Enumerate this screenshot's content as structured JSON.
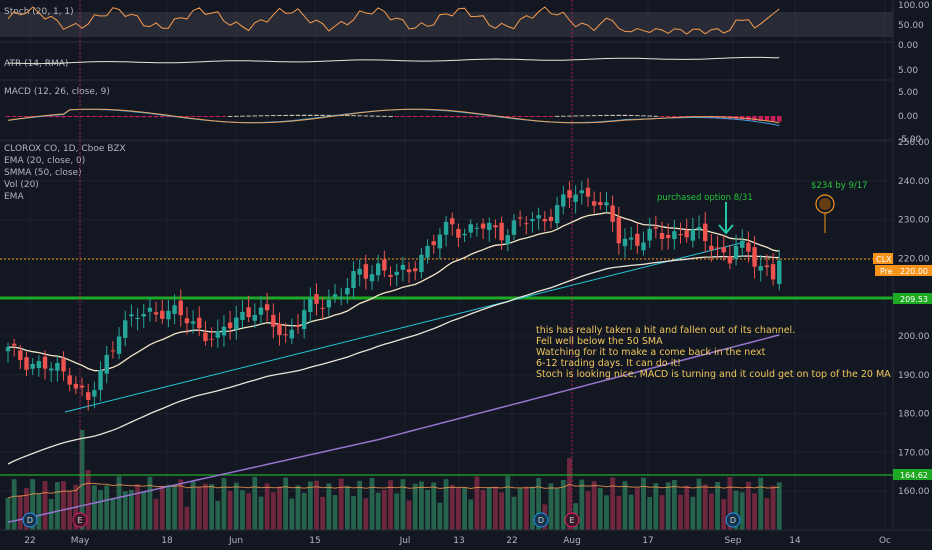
{
  "chart_data": {
    "type": "candlestick",
    "symbol": "CLX",
    "title": "CLOROX CO, 1D, Cboe BZX",
    "indicator_legend": [
      "EMA (20, close, 0)",
      "SMMA (50, close)",
      "Vol (20)",
      "EMA"
    ],
    "panes": {
      "stoch": {
        "label": "Stoch (20, 1, 1)",
        "ticks": [
          "100.00",
          "50.00",
          "0.00"
        ],
        "ylim": [
          0,
          100
        ]
      },
      "atr": {
        "label": "ATR (14, RMA)",
        "ticks": [
          "5.00"
        ]
      },
      "macd": {
        "label": "MACD (12, 26, close, 9)",
        "ticks": [
          "5.00",
          "0.00",
          "-5.00"
        ]
      }
    },
    "price_axis": {
      "ticks": [
        "250.00",
        "240.00",
        "230.00",
        "220.00",
        "210.00",
        "200.00",
        "190.00",
        "180.00",
        "170.00",
        "160.00"
      ],
      "ylim": [
        150,
        250
      ]
    },
    "x_ticks": [
      "22",
      "May",
      "18",
      "Jun",
      "15",
      "Jul",
      "13",
      "22",
      "Aug",
      "17",
      "Sep",
      "14",
      "Oc"
    ],
    "price_labels": {
      "current": {
        "symbol": "CLX",
        "prefix": "Pre",
        "value": "220.00",
        "color": "#f7931a"
      },
      "support": {
        "value": "209.53",
        "color": "#1fa824"
      },
      "lower": {
        "value": "164.62",
        "color": "#1fa824"
      }
    },
    "annotations": {
      "target": "$234 by 9/17",
      "purchase": "purchased option 8/31",
      "note": [
        "this has really taken a hit and fallen out of its channel.",
        "Fell well below the 50 SMA",
        "Watching for it to make a come back in the next",
        "6-12 trading days. It can do it!",
        "Stoch is looking nice, MACD is turning and it could get on top of the 20 MA again soon"
      ]
    },
    "events": [
      "D",
      "E",
      "D",
      "E",
      "D"
    ],
    "candle_keyframes": [
      [
        0,
        196
      ],
      [
        4,
        193
      ],
      [
        8,
        191
      ],
      [
        10,
        190
      ],
      [
        13,
        183
      ],
      [
        15,
        190
      ],
      [
        18,
        202
      ],
      [
        21,
        205
      ],
      [
        25,
        207
      ],
      [
        28,
        205
      ],
      [
        31,
        202
      ],
      [
        34,
        199
      ],
      [
        37,
        205
      ],
      [
        40,
        207
      ],
      [
        43,
        203
      ],
      [
        45,
        200
      ],
      [
        48,
        206
      ],
      [
        51,
        209
      ],
      [
        54,
        211
      ],
      [
        57,
        216
      ],
      [
        60,
        218
      ],
      [
        63,
        215
      ],
      [
        66,
        219
      ],
      [
        69,
        224
      ],
      [
        72,
        229
      ],
      [
        74,
        227
      ],
      [
        77,
        228
      ],
      [
        80,
        227
      ],
      [
        83,
        229
      ],
      [
        86,
        230
      ],
      [
        89,
        233
      ],
      [
        92,
        237
      ],
      [
        95,
        236
      ],
      [
        97,
        232
      ],
      [
        99,
        225
      ],
      [
        102,
        225
      ],
      [
        106,
        226
      ],
      [
        110,
        227
      ],
      [
        114,
        224
      ],
      [
        117,
        220
      ],
      [
        118,
        223
      ],
      [
        120,
        221
      ],
      [
        122,
        219
      ],
      [
        124,
        215
      ],
      [
        125,
        220
      ]
    ],
    "overlays": {
      "ema20_color": "#f2e6c4",
      "smma50_color": "#e8e4d6",
      "long_ema_color": "#9575cd",
      "channel_color": "#26c6da"
    }
  }
}
